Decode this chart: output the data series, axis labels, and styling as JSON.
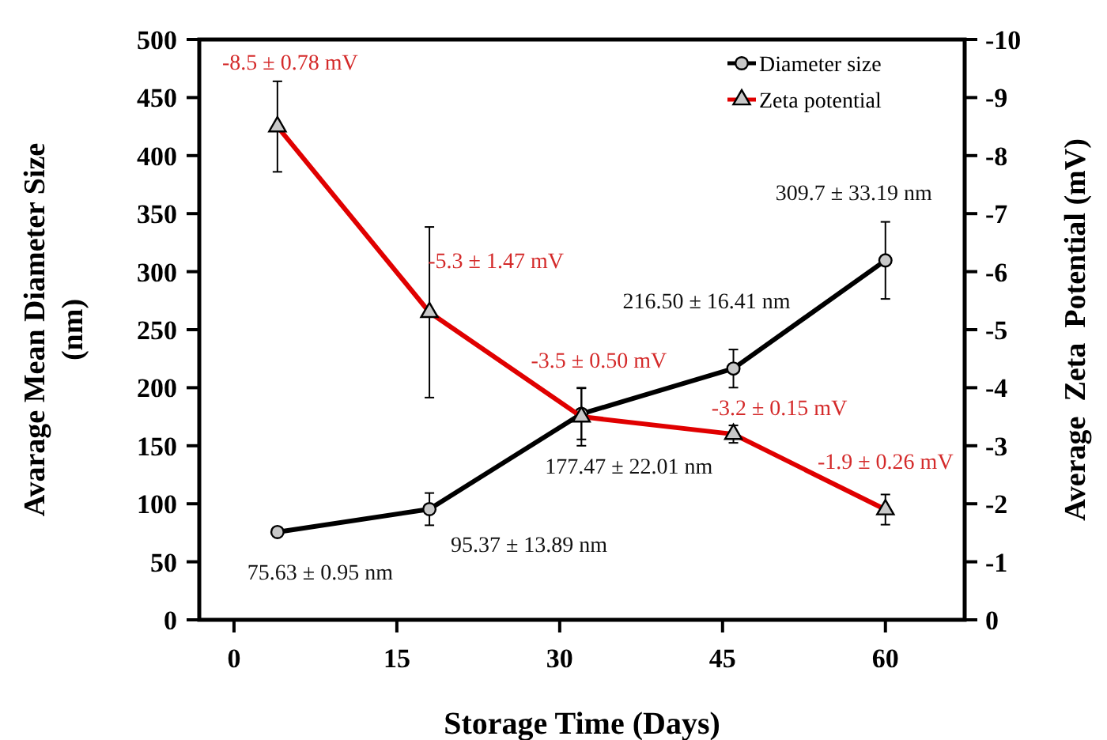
{
  "chart_data": {
    "type": "line",
    "xlabel": "Storage Time (Days)",
    "ylabel": "Avarage Mean Diameter Size (nm)",
    "y2label": "Average  Zeta  Potential (mV)",
    "x": [
      4,
      18,
      32,
      46,
      60
    ],
    "xlim": [
      -3.2,
      67.3
    ],
    "xticks": [
      0,
      15,
      30,
      45,
      60
    ],
    "ylim": [
      0,
      500
    ],
    "yticks": [
      0,
      50,
      100,
      150,
      200,
      250,
      300,
      350,
      400,
      450,
      500
    ],
    "y2lim": [
      0,
      -10
    ],
    "y2ticks": [
      0,
      -1,
      -2,
      -3,
      -4,
      -5,
      -6,
      -7,
      -8,
      -9,
      -10
    ],
    "grid": false,
    "legend": "top right",
    "line_style": "solid",
    "series": [
      {
        "name": "Diameter size",
        "color": "#000000",
        "marker": "circle",
        "values": [
          75.63,
          95.37,
          177.47,
          216.5,
          309.7
        ],
        "errors": [
          0.95,
          13.89,
          22.01,
          16.41,
          33.19
        ],
        "value_labels": [
          "75.63 ± 0.95 nm",
          "95.37 ± 13.89 nm",
          "177.47 ± 22.01 nm",
          "216.50 ± 16.41 nm",
          "309.7  ±  33.19 nm"
        ]
      },
      {
        "name": "Zeta potential",
        "color": "#e00000",
        "marker": "triangle",
        "axis": "y2",
        "values": [
          -8.5,
          -5.3,
          -3.5,
          -3.2,
          -1.9
        ],
        "errors": [
          0.78,
          1.47,
          0.5,
          0.15,
          0.26
        ],
        "value_labels": [
          "-8.5 ± 0.78 mV",
          "-5.3 ± 1.47 mV",
          "-3.5 ± 0.50 mV",
          "-3.2 ± 0.15 mV",
          "-1.9 ± 0.26 mV"
        ]
      }
    ]
  }
}
